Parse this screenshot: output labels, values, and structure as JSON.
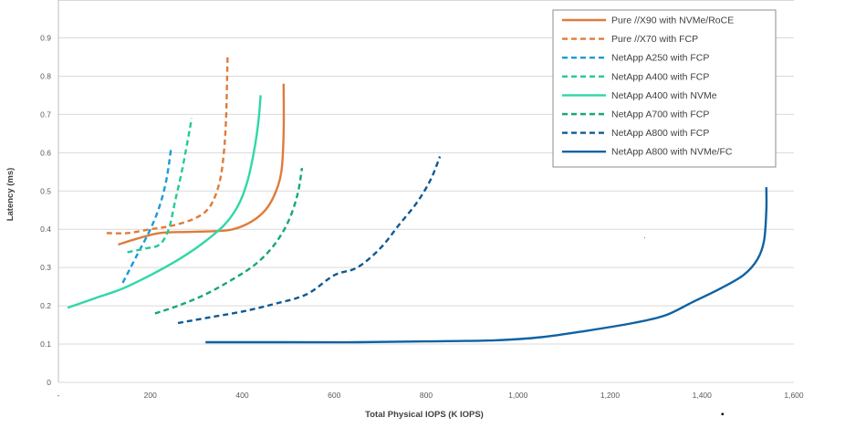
{
  "chart_data": {
    "type": "line",
    "title": "",
    "xlabel": "Total Physical IOPS (K IOPS)",
    "ylabel": "Latency (ms)",
    "xlim": [
      0,
      1600
    ],
    "ylim": [
      0,
      0.9
    ],
    "x_ticks": [
      0,
      200,
      400,
      600,
      800,
      1000,
      1200,
      1400,
      1600
    ],
    "x_tick_labels": [
      "-",
      "200",
      "400",
      "600",
      "800",
      "1,000",
      "1,200",
      "1,400",
      "1,600"
    ],
    "y_ticks": [
      0,
      0.1,
      0.2,
      0.3,
      0.4,
      0.5,
      0.6,
      0.7,
      0.8,
      0.9
    ],
    "y_tick_labels": [
      "0",
      "0.1",
      "0.2",
      "0.3",
      "0.4",
      "0.5",
      "0.6",
      "0.7",
      "0.8",
      "0.9"
    ],
    "grid": true,
    "legend_position": "top-right",
    "series": [
      {
        "name": "Pure //X90 with NVMe/RoCE",
        "color": "#e07b39",
        "dash": "solid",
        "points": [
          [
            130,
            0.36
          ],
          [
            170,
            0.375
          ],
          [
            220,
            0.39
          ],
          [
            280,
            0.393
          ],
          [
            340,
            0.395
          ],
          [
            380,
            0.4
          ],
          [
            420,
            0.42
          ],
          [
            450,
            0.45
          ],
          [
            470,
            0.49
          ],
          [
            485,
            0.55
          ],
          [
            490,
            0.65
          ],
          [
            490,
            0.78
          ]
        ]
      },
      {
        "name": "Pure //X70 with FCP",
        "color": "#e07b39",
        "dash": "dashed",
        "points": [
          [
            105,
            0.39
          ],
          [
            150,
            0.39
          ],
          [
            200,
            0.4
          ],
          [
            250,
            0.41
          ],
          [
            300,
            0.43
          ],
          [
            330,
            0.46
          ],
          [
            350,
            0.52
          ],
          [
            360,
            0.6
          ],
          [
            365,
            0.7
          ],
          [
            368,
            0.85
          ]
        ]
      },
      {
        "name": "NetApp A250 with FCP",
        "color": "#1a9bd7",
        "dash": "dashed",
        "points": [
          [
            140,
            0.26
          ],
          [
            170,
            0.33
          ],
          [
            200,
            0.4
          ],
          [
            220,
            0.46
          ],
          [
            235,
            0.53
          ],
          [
            245,
            0.61
          ]
        ]
      },
      {
        "name": "NetApp A400 with FCP",
        "color": "#24c99a",
        "dash": "dashed",
        "points": [
          [
            150,
            0.34
          ],
          [
            190,
            0.35
          ],
          [
            220,
            0.36
          ],
          [
            240,
            0.4
          ],
          [
            255,
            0.48
          ],
          [
            270,
            0.56
          ],
          [
            290,
            0.69
          ]
        ]
      },
      {
        "name": "NetApp A400 with NVMe",
        "color": "#2ed8a8",
        "dash": "solid",
        "points": [
          [
            20,
            0.195
          ],
          [
            80,
            0.22
          ],
          [
            140,
            0.245
          ],
          [
            200,
            0.28
          ],
          [
            260,
            0.32
          ],
          [
            310,
            0.36
          ],
          [
            360,
            0.41
          ],
          [
            390,
            0.46
          ],
          [
            410,
            0.52
          ],
          [
            425,
            0.6
          ],
          [
            435,
            0.68
          ],
          [
            440,
            0.75
          ]
        ]
      },
      {
        "name": "NetApp A700 with FCP",
        "color": "#16a67a",
        "dash": "dashed",
        "points": [
          [
            210,
            0.18
          ],
          [
            260,
            0.2
          ],
          [
            320,
            0.23
          ],
          [
            380,
            0.27
          ],
          [
            430,
            0.31
          ],
          [
            470,
            0.36
          ],
          [
            500,
            0.42
          ],
          [
            520,
            0.49
          ],
          [
            530,
            0.56
          ]
        ]
      },
      {
        "name": "NetApp A800 with FCP",
        "color": "#0f5a94",
        "dash": "dashed",
        "points": [
          [
            260,
            0.155
          ],
          [
            330,
            0.17
          ],
          [
            400,
            0.185
          ],
          [
            470,
            0.205
          ],
          [
            540,
            0.23
          ],
          [
            600,
            0.28
          ],
          [
            650,
            0.3
          ],
          [
            700,
            0.35
          ],
          [
            740,
            0.41
          ],
          [
            780,
            0.47
          ],
          [
            810,
            0.53
          ],
          [
            830,
            0.59
          ]
        ]
      },
      {
        "name": "NetApp A800 with NVMe/FC",
        "color": "#0e62a3",
        "dash": "solid",
        "points": [
          [
            320,
            0.105
          ],
          [
            500,
            0.105
          ],
          [
            650,
            0.105
          ],
          [
            800,
            0.107
          ],
          [
            950,
            0.11
          ],
          [
            1050,
            0.118
          ],
          [
            1150,
            0.135
          ],
          [
            1250,
            0.155
          ],
          [
            1320,
            0.175
          ],
          [
            1380,
            0.21
          ],
          [
            1440,
            0.245
          ],
          [
            1490,
            0.28
          ],
          [
            1520,
            0.32
          ],
          [
            1535,
            0.37
          ],
          [
            1540,
            0.45
          ],
          [
            1540,
            0.51
          ]
        ]
      }
    ]
  }
}
